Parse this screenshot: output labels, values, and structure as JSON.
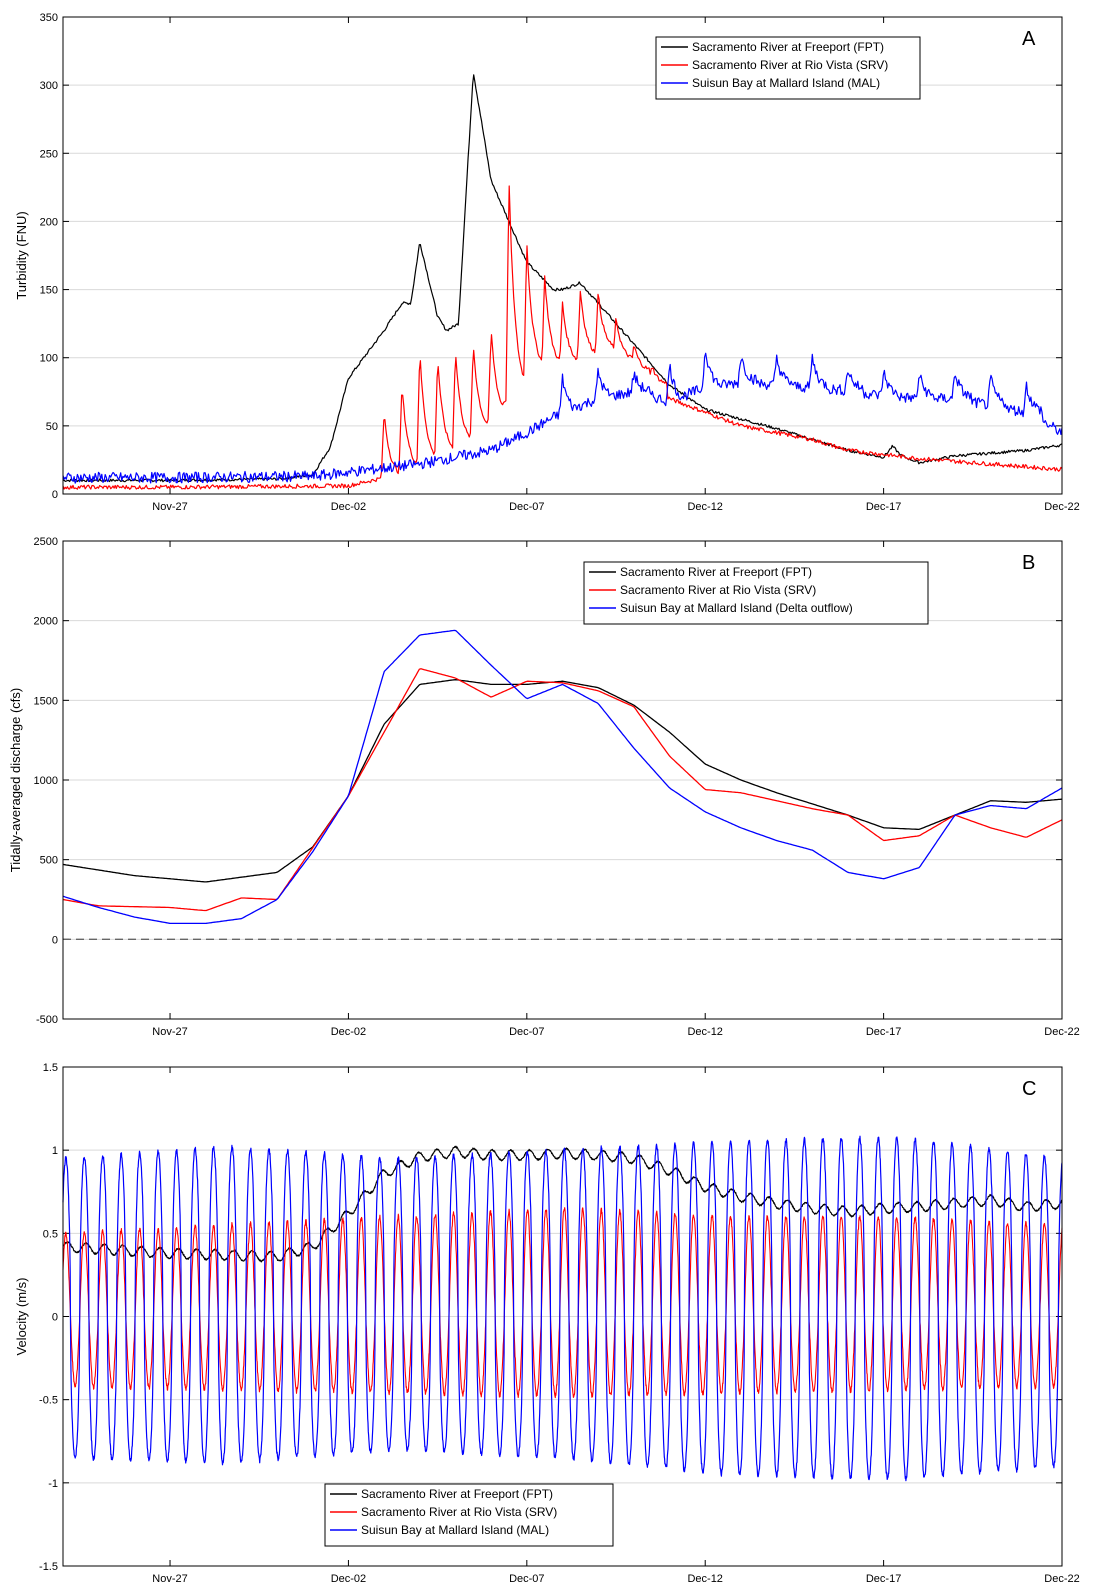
{
  "chart_data": [
    {
      "panel_letter": "A",
      "type": "line",
      "ylabel": "Turbidity (FNU)",
      "ylim": [
        0,
        350
      ],
      "yticks": [
        0,
        50,
        100,
        150,
        200,
        250,
        300,
        350
      ],
      "xlim": [
        "2015-11-24",
        "2015-12-22"
      ],
      "xtick_dates": [
        "2015-11-27",
        "2015-12-02",
        "2015-12-07",
        "2015-12-12",
        "2015-12-17",
        "2015-12-22"
      ],
      "xtick_labels": [
        "Nov-27",
        "Dec-02",
        "Dec-07",
        "Dec-12",
        "Dec-17",
        "Dec-22"
      ],
      "grid": "horizontal",
      "legend_position": "top-right",
      "series": [
        {
          "name": "Sacramento River at Freeport (FPT)",
          "color": "#000000",
          "x": [
            "2015-11-24",
            "2015-11-27",
            "2015-11-30",
            "2015-12-01",
            "2015-12-01T12:00",
            "2015-12-02",
            "2015-12-03",
            "2015-12-03T12:00",
            "2015-12-03T18:00",
            "2015-12-04",
            "2015-12-04T12:00",
            "2015-12-04T18:00",
            "2015-12-05T02:00",
            "2015-12-05T12:00",
            "2015-12-06",
            "2015-12-07",
            "2015-12-07T18:00",
            "2015-12-08",
            "2015-12-08T12:00",
            "2015-12-09",
            "2015-12-10",
            "2015-12-11",
            "2015-12-12",
            "2015-12-13",
            "2015-12-14",
            "2015-12-15",
            "2015-12-16",
            "2015-12-17",
            "2015-12-17T06:00",
            "2015-12-17T12:00",
            "2015-12-18",
            "2015-12-19",
            "2015-12-20",
            "2015-12-21",
            "2015-12-22"
          ],
          "y": [
            10,
            10,
            11,
            14,
            35,
            85,
            120,
            140,
            140,
            185,
            130,
            120,
            125,
            310,
            230,
            170,
            150,
            150,
            155,
            140,
            110,
            80,
            62,
            55,
            48,
            40,
            32,
            27,
            35,
            28,
            23,
            28,
            30,
            32,
            36
          ]
        },
        {
          "name": "Sacramento River at Rio Vista (SRV)",
          "color": "#ff0000",
          "x": [
            "2015-11-24",
            "2015-11-27",
            "2015-12-02",
            "2015-12-03",
            "2015-12-04",
            "2015-12-05",
            "2015-12-06",
            "2015-12-07",
            "2015-12-08",
            "2015-12-09",
            "2015-12-10",
            "2015-12-11",
            "2015-12-12",
            "2015-12-13",
            "2015-12-14",
            "2015-12-15",
            "2015-12-16",
            "2015-12-17",
            "2015-12-18",
            "2015-12-19",
            "2015-12-20",
            "2015-12-21",
            "2015-12-22"
          ],
          "y": [
            5,
            5,
            6,
            12,
            22,
            35,
            55,
            90,
            95,
            105,
            90,
            70,
            60,
            50,
            45,
            40,
            32,
            29,
            26,
            24,
            22,
            20,
            18
          ],
          "spikes": [
            {
              "x": "2015-12-03",
              "y": 60
            },
            {
              "x": "2015-12-03T12:00",
              "y": 80
            },
            {
              "x": "2015-12-04",
              "y": 105
            },
            {
              "x": "2015-12-04T12:00",
              "y": 100
            },
            {
              "x": "2015-12-05",
              "y": 105
            },
            {
              "x": "2015-12-05T12:00",
              "y": 110
            },
            {
              "x": "2015-12-06",
              "y": 120
            },
            {
              "x": "2015-12-06T12:00",
              "y": 232
            },
            {
              "x": "2015-12-07",
              "y": 185
            },
            {
              "x": "2015-12-07T12:00",
              "y": 160
            },
            {
              "x": "2015-12-08",
              "y": 140
            },
            {
              "x": "2015-12-08T12:00",
              "y": 150
            },
            {
              "x": "2015-12-09",
              "y": 148
            },
            {
              "x": "2015-12-09T12:00",
              "y": 130
            },
            {
              "x": "2015-12-10",
              "y": 110
            },
            {
              "x": "2015-12-10T12:00",
              "y": 95
            }
          ]
        },
        {
          "name": "Suisun Bay at Mallard Island (MAL)",
          "color": "#0000ff",
          "x": [
            "2015-11-24",
            "2015-11-27",
            "2015-12-01",
            "2015-12-02",
            "2015-12-04",
            "2015-12-06",
            "2015-12-07",
            "2015-12-08",
            "2015-12-09",
            "2015-12-10",
            "2015-12-11",
            "2015-12-12",
            "2015-12-13",
            "2015-12-14",
            "2015-12-15",
            "2015-12-16",
            "2015-12-17",
            "2015-12-18",
            "2015-12-19",
            "2015-12-20",
            "2015-12-21",
            "2015-12-22"
          ],
          "y": [
            12,
            12,
            13,
            16,
            22,
            32,
            45,
            60,
            70,
            75,
            68,
            78,
            82,
            80,
            78,
            76,
            72,
            70,
            70,
            65,
            60,
            45
          ],
          "spikes": [
            {
              "x": "2015-12-08",
              "y": 85
            },
            {
              "x": "2015-12-09",
              "y": 90
            },
            {
              "x": "2015-12-10",
              "y": 88
            },
            {
              "x": "2015-12-11",
              "y": 95
            },
            {
              "x": "2015-12-12",
              "y": 108
            },
            {
              "x": "2015-12-13",
              "y": 102
            },
            {
              "x": "2015-12-14",
              "y": 100
            },
            {
              "x": "2015-12-15",
              "y": 100
            },
            {
              "x": "2015-12-16",
              "y": 92
            },
            {
              "x": "2015-12-17",
              "y": 90
            },
            {
              "x": "2015-12-18",
              "y": 88
            },
            {
              "x": "2015-12-19",
              "y": 90
            },
            {
              "x": "2015-12-20",
              "y": 85
            },
            {
              "x": "2015-12-21",
              "y": 80
            }
          ]
        }
      ]
    },
    {
      "panel_letter": "B",
      "type": "line",
      "ylabel": "Tidally-averaged discharge (cfs)",
      "ylim": [
        -500,
        2500
      ],
      "yticks": [
        -500,
        0,
        500,
        1000,
        1500,
        2000,
        2500
      ],
      "xlim": [
        "2015-11-24",
        "2015-12-22"
      ],
      "xtick_dates": [
        "2015-11-27",
        "2015-12-02",
        "2015-12-07",
        "2015-12-12",
        "2015-12-17",
        "2015-12-22"
      ],
      "xtick_labels": [
        "Nov-27",
        "Dec-02",
        "Dec-07",
        "Dec-12",
        "Dec-17",
        "Dec-22"
      ],
      "grid": "horizontal",
      "zero_line": "dashed",
      "legend_position": "top-right",
      "series": [
        {
          "name": "Sacramento River at Freeport (FPT)",
          "color": "#000000",
          "x": [
            "2015-11-24",
            "2015-11-26",
            "2015-11-28",
            "2015-11-30",
            "2015-12-01",
            "2015-12-02",
            "2015-12-03",
            "2015-12-04",
            "2015-12-05",
            "2015-12-06",
            "2015-12-07",
            "2015-12-08",
            "2015-12-09",
            "2015-12-10",
            "2015-12-11",
            "2015-12-12",
            "2015-12-13",
            "2015-12-14",
            "2015-12-15",
            "2015-12-16",
            "2015-12-17",
            "2015-12-18",
            "2015-12-19",
            "2015-12-20",
            "2015-12-21",
            "2015-12-22"
          ],
          "y": [
            470,
            400,
            360,
            420,
            580,
            900,
            1350,
            1600,
            1630,
            1600,
            1600,
            1620,
            1580,
            1470,
            1300,
            1100,
            1000,
            920,
            850,
            780,
            700,
            690,
            780,
            870,
            860,
            880
          ]
        },
        {
          "name": "Sacramento River at Rio Vista (SRV)",
          "color": "#ff0000",
          "x": [
            "2015-11-24",
            "2015-11-25",
            "2015-11-27",
            "2015-11-28",
            "2015-11-29",
            "2015-11-30",
            "2015-12-02",
            "2015-12-03",
            "2015-12-04",
            "2015-12-05",
            "2015-12-06",
            "2015-12-07",
            "2015-12-08",
            "2015-12-09",
            "2015-12-10",
            "2015-12-11",
            "2015-12-12",
            "2015-12-13",
            "2015-12-14",
            "2015-12-15",
            "2015-12-16",
            "2015-12-17",
            "2015-12-18",
            "2015-12-19",
            "2015-12-20",
            "2015-12-21",
            "2015-12-22"
          ],
          "y": [
            250,
            210,
            200,
            180,
            260,
            250,
            900,
            1300,
            1700,
            1640,
            1520,
            1620,
            1610,
            1560,
            1460,
            1150,
            940,
            920,
            870,
            820,
            780,
            620,
            650,
            780,
            700,
            640,
            750
          ]
        },
        {
          "name": "Suisun Bay at Mallard Island (Delta outflow)",
          "color": "#0000ff",
          "x": [
            "2015-11-24",
            "2015-11-25",
            "2015-11-26",
            "2015-11-27",
            "2015-11-28",
            "2015-11-29",
            "2015-11-30",
            "2015-12-01",
            "2015-12-02",
            "2015-12-03",
            "2015-12-04",
            "2015-12-05",
            "2015-12-06",
            "2015-12-07",
            "2015-12-08",
            "2015-12-09",
            "2015-12-10",
            "2015-12-11",
            "2015-12-12",
            "2015-12-13",
            "2015-12-14",
            "2015-12-15",
            "2015-12-16",
            "2015-12-17",
            "2015-12-18",
            "2015-12-19",
            "2015-12-20",
            "2015-12-21",
            "2015-12-22"
          ],
          "y": [
            270,
            200,
            140,
            100,
            100,
            130,
            250,
            550,
            900,
            1680,
            1910,
            1940,
            1720,
            1510,
            1600,
            1480,
            1200,
            950,
            800,
            700,
            620,
            560,
            420,
            380,
            450,
            780,
            840,
            820,
            950
          ]
        }
      ]
    },
    {
      "panel_letter": "C",
      "type": "line",
      "ylabel": "Velocity (m/s)",
      "ylim": [
        -1.5,
        1.5
      ],
      "yticks": [
        -1.5,
        -1,
        -0.5,
        0,
        0.5,
        1,
        1.5
      ],
      "xlim": [
        "2015-11-24",
        "2015-12-22"
      ],
      "xtick_dates": [
        "2015-11-27",
        "2015-12-02",
        "2015-12-07",
        "2015-12-12",
        "2015-12-17",
        "2015-12-22"
      ],
      "xtick_labels": [
        "Nov-27",
        "Dec-02",
        "Dec-07",
        "Dec-12",
        "Dec-17",
        "Dec-22"
      ],
      "grid": "horizontal",
      "legend_position": "bottom-left",
      "series": [
        {
          "name": "Sacramento River at Freeport (FPT)",
          "color": "#000000",
          "x": [
            "2015-11-24",
            "2015-11-27",
            "2015-11-30",
            "2015-12-01",
            "2015-12-02",
            "2015-12-03",
            "2015-12-04",
            "2015-12-05",
            "2015-12-06",
            "2015-12-07",
            "2015-12-08",
            "2015-12-09",
            "2015-12-10",
            "2015-12-11",
            "2015-12-12",
            "2015-12-13",
            "2015-12-14",
            "2015-12-15",
            "2015-12-16",
            "2015-12-17",
            "2015-12-18",
            "2015-12-19",
            "2015-12-20",
            "2015-12-21",
            "2015-12-22"
          ],
          "y": [
            0.42,
            0.38,
            0.36,
            0.42,
            0.62,
            0.86,
            0.96,
            0.99,
            0.97,
            0.97,
            0.98,
            0.97,
            0.95,
            0.88,
            0.78,
            0.72,
            0.68,
            0.65,
            0.63,
            0.65,
            0.66,
            0.68,
            0.7,
            0.66,
            0.68
          ]
        },
        {
          "name": "Sacramento River at Rio Vista (SRV)",
          "color": "#ff0000",
          "tidal_range": {
            "max_values": [
              0.5,
              0.55,
              0.6,
              0.65,
              0.6,
              0.6,
              0.55
            ],
            "min_values": [
              -0.42,
              -0.44,
              -0.46,
              -0.48,
              -0.46,
              -0.44,
              -0.42
            ]
          }
        },
        {
          "name": "Suisun Bay at Mallard Island (MAL)",
          "color": "#0000ff",
          "tidal_range": {
            "max_values": [
              0.95,
              1.02,
              0.95,
              1.0,
              1.05,
              1.08,
              0.95
            ],
            "min_values": [
              -0.85,
              -0.88,
              -0.8,
              -0.85,
              -0.95,
              -0.98,
              -0.9
            ]
          }
        }
      ]
    }
  ]
}
